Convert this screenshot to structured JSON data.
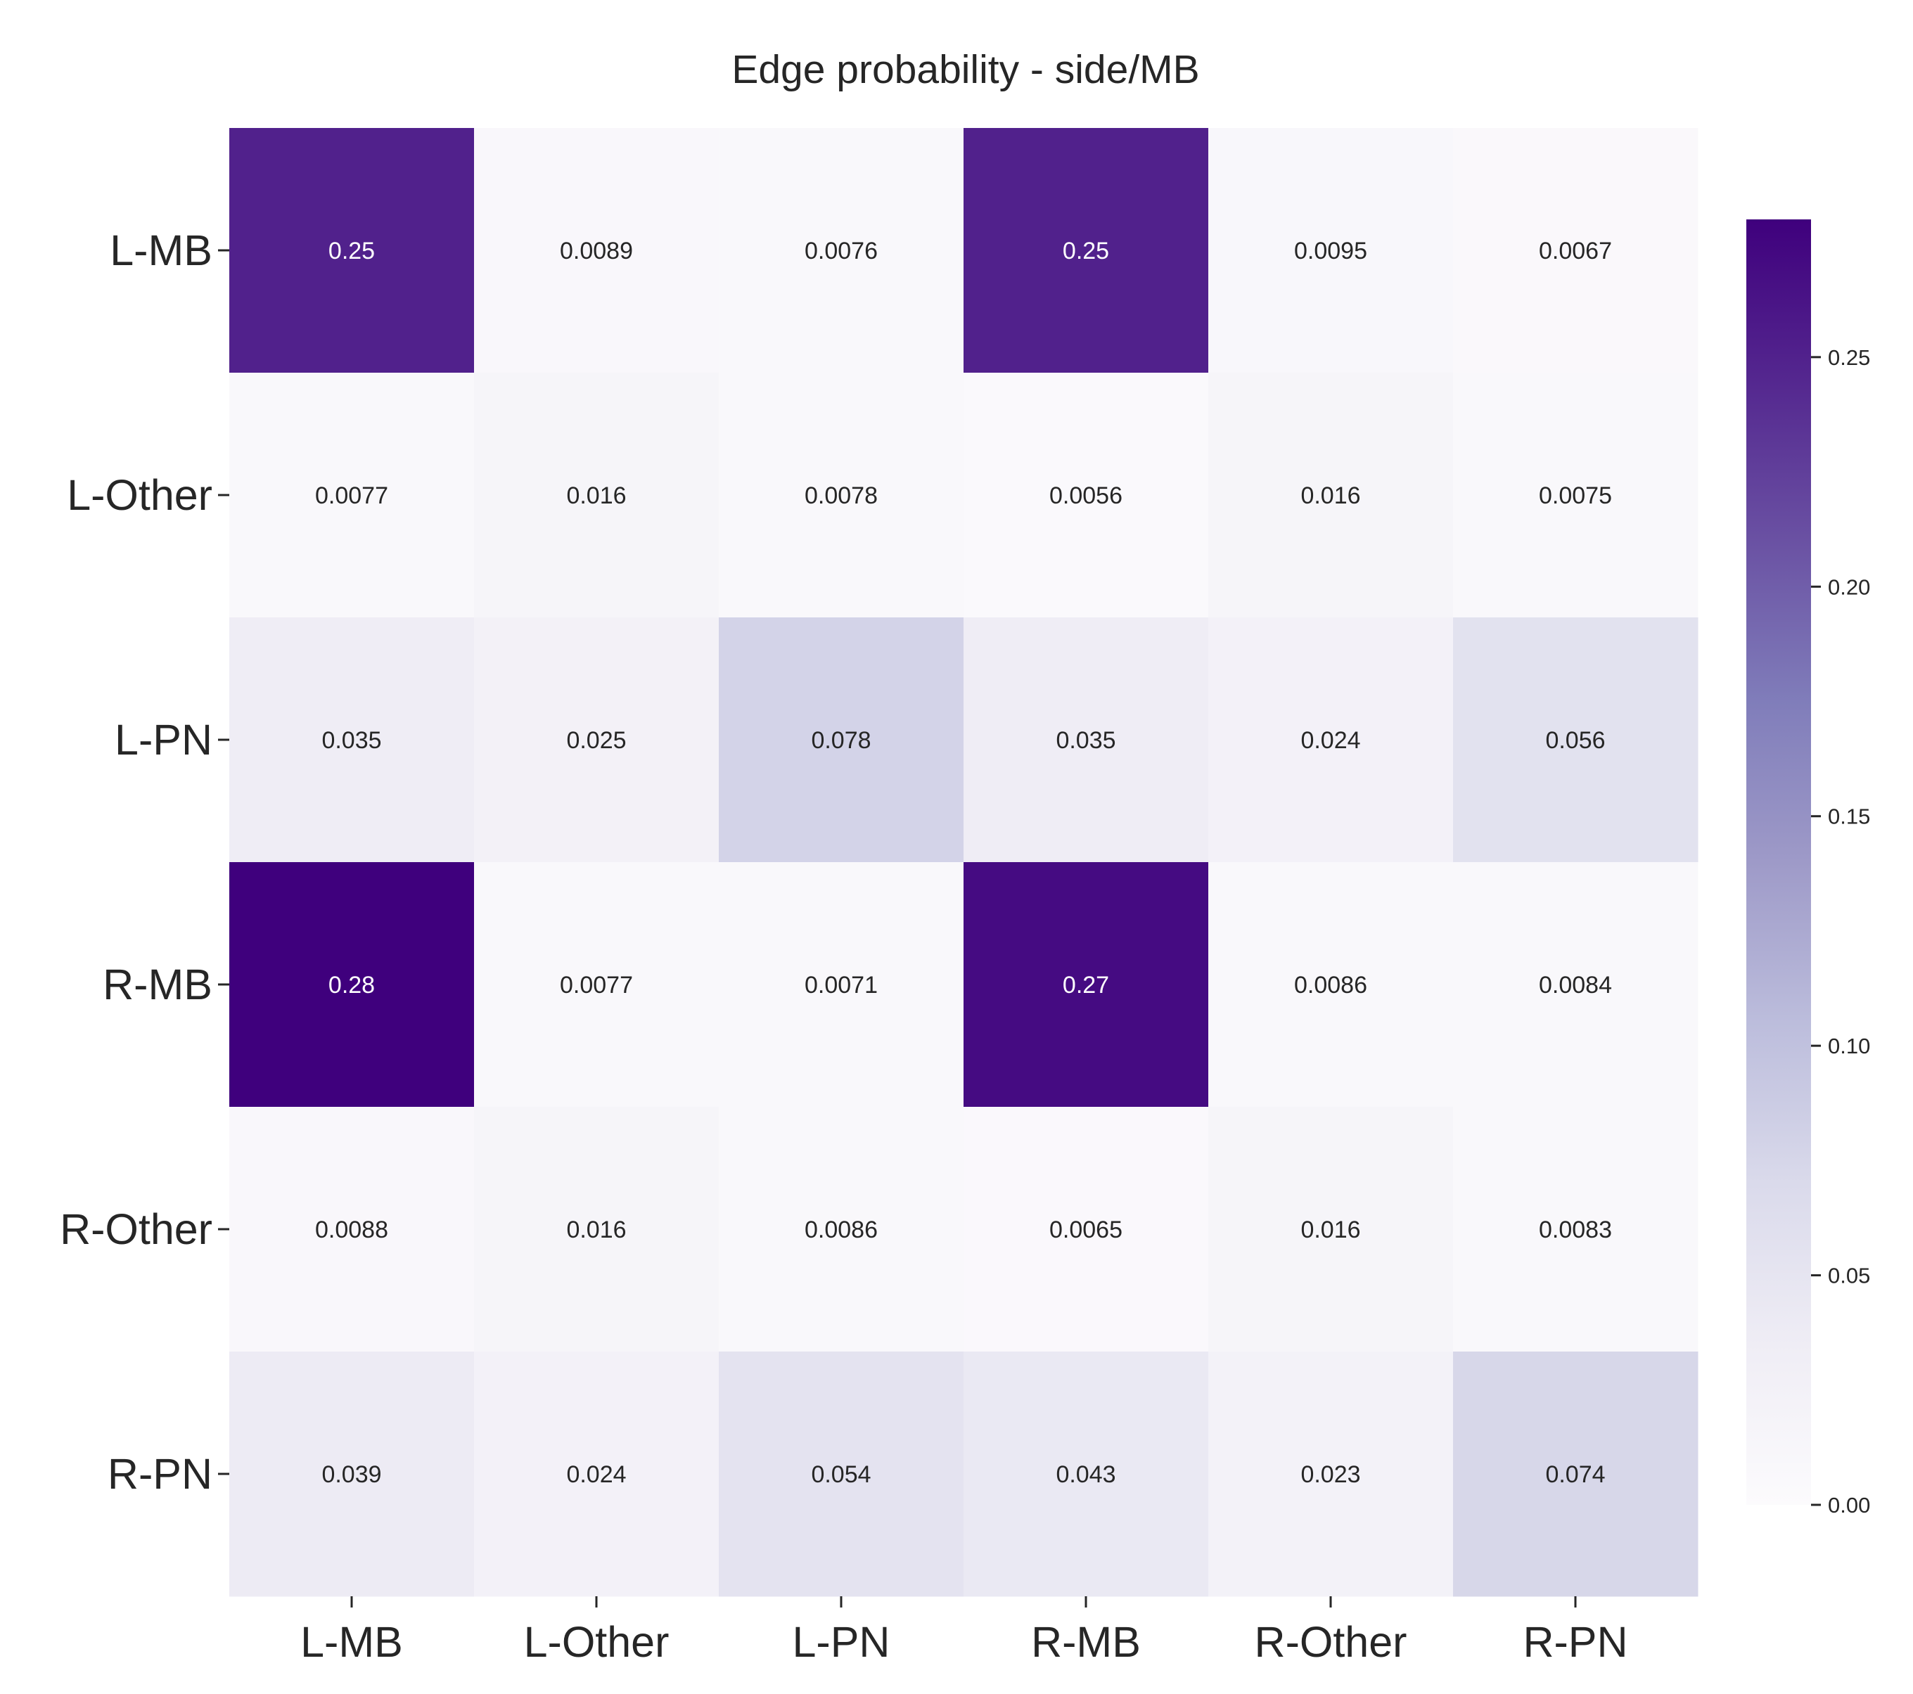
{
  "chart_data": {
    "type": "heatmap",
    "title": "Edge probability - side/MB",
    "xlabel": "",
    "ylabel": "",
    "x_categories": [
      "L-MB",
      "L-Other",
      "L-PN",
      "R-MB",
      "R-Other",
      "R-PN"
    ],
    "y_categories": [
      "L-MB",
      "L-Other",
      "L-PN",
      "R-MB",
      "R-Other",
      "R-PN"
    ],
    "values": [
      [
        0.25,
        0.0089,
        0.0076,
        0.25,
        0.0095,
        0.0067
      ],
      [
        0.0077,
        0.016,
        0.0078,
        0.0056,
        0.016,
        0.0075
      ],
      [
        0.035,
        0.025,
        0.078,
        0.035,
        0.024,
        0.056
      ],
      [
        0.28,
        0.0077,
        0.0071,
        0.27,
        0.0086,
        0.0084
      ],
      [
        0.0088,
        0.016,
        0.0086,
        0.0065,
        0.016,
        0.0083
      ],
      [
        0.039,
        0.024,
        0.054,
        0.043,
        0.023,
        0.074
      ]
    ],
    "cell_labels": [
      [
        "0.25",
        "0.0089",
        "0.0076",
        "0.25",
        "0.0095",
        "0.0067"
      ],
      [
        "0.0077",
        "0.016",
        "0.0078",
        "0.0056",
        "0.016",
        "0.0075"
      ],
      [
        "0.035",
        "0.025",
        "0.078",
        "0.035",
        "0.024",
        "0.056"
      ],
      [
        "0.28",
        "0.0077",
        "0.0071",
        "0.27",
        "0.0086",
        "0.0084"
      ],
      [
        "0.0088",
        "0.016",
        "0.0086",
        "0.0065",
        "0.016",
        "0.0083"
      ],
      [
        "0.039",
        "0.024",
        "0.054",
        "0.043",
        "0.023",
        "0.074"
      ]
    ],
    "colormap": "Purples",
    "colormap_stops": [
      "#fcfbfd",
      "#efedf5",
      "#dadaeb",
      "#bcbddc",
      "#9e9ac8",
      "#807dba",
      "#6a51a3",
      "#54278f",
      "#3f007d"
    ],
    "vmin": 0.0,
    "vmax": 0.28,
    "colorbar": {
      "ticks": [
        0.0,
        0.05,
        0.1,
        0.15,
        0.2,
        0.25
      ],
      "tick_labels": [
        "0.00",
        "0.05",
        "0.10",
        "0.15",
        "0.20",
        "0.25"
      ]
    },
    "grid": false,
    "legend": "colorbar-right",
    "text_color_dark": "#262626",
    "text_color_light": "#ffffff"
  }
}
